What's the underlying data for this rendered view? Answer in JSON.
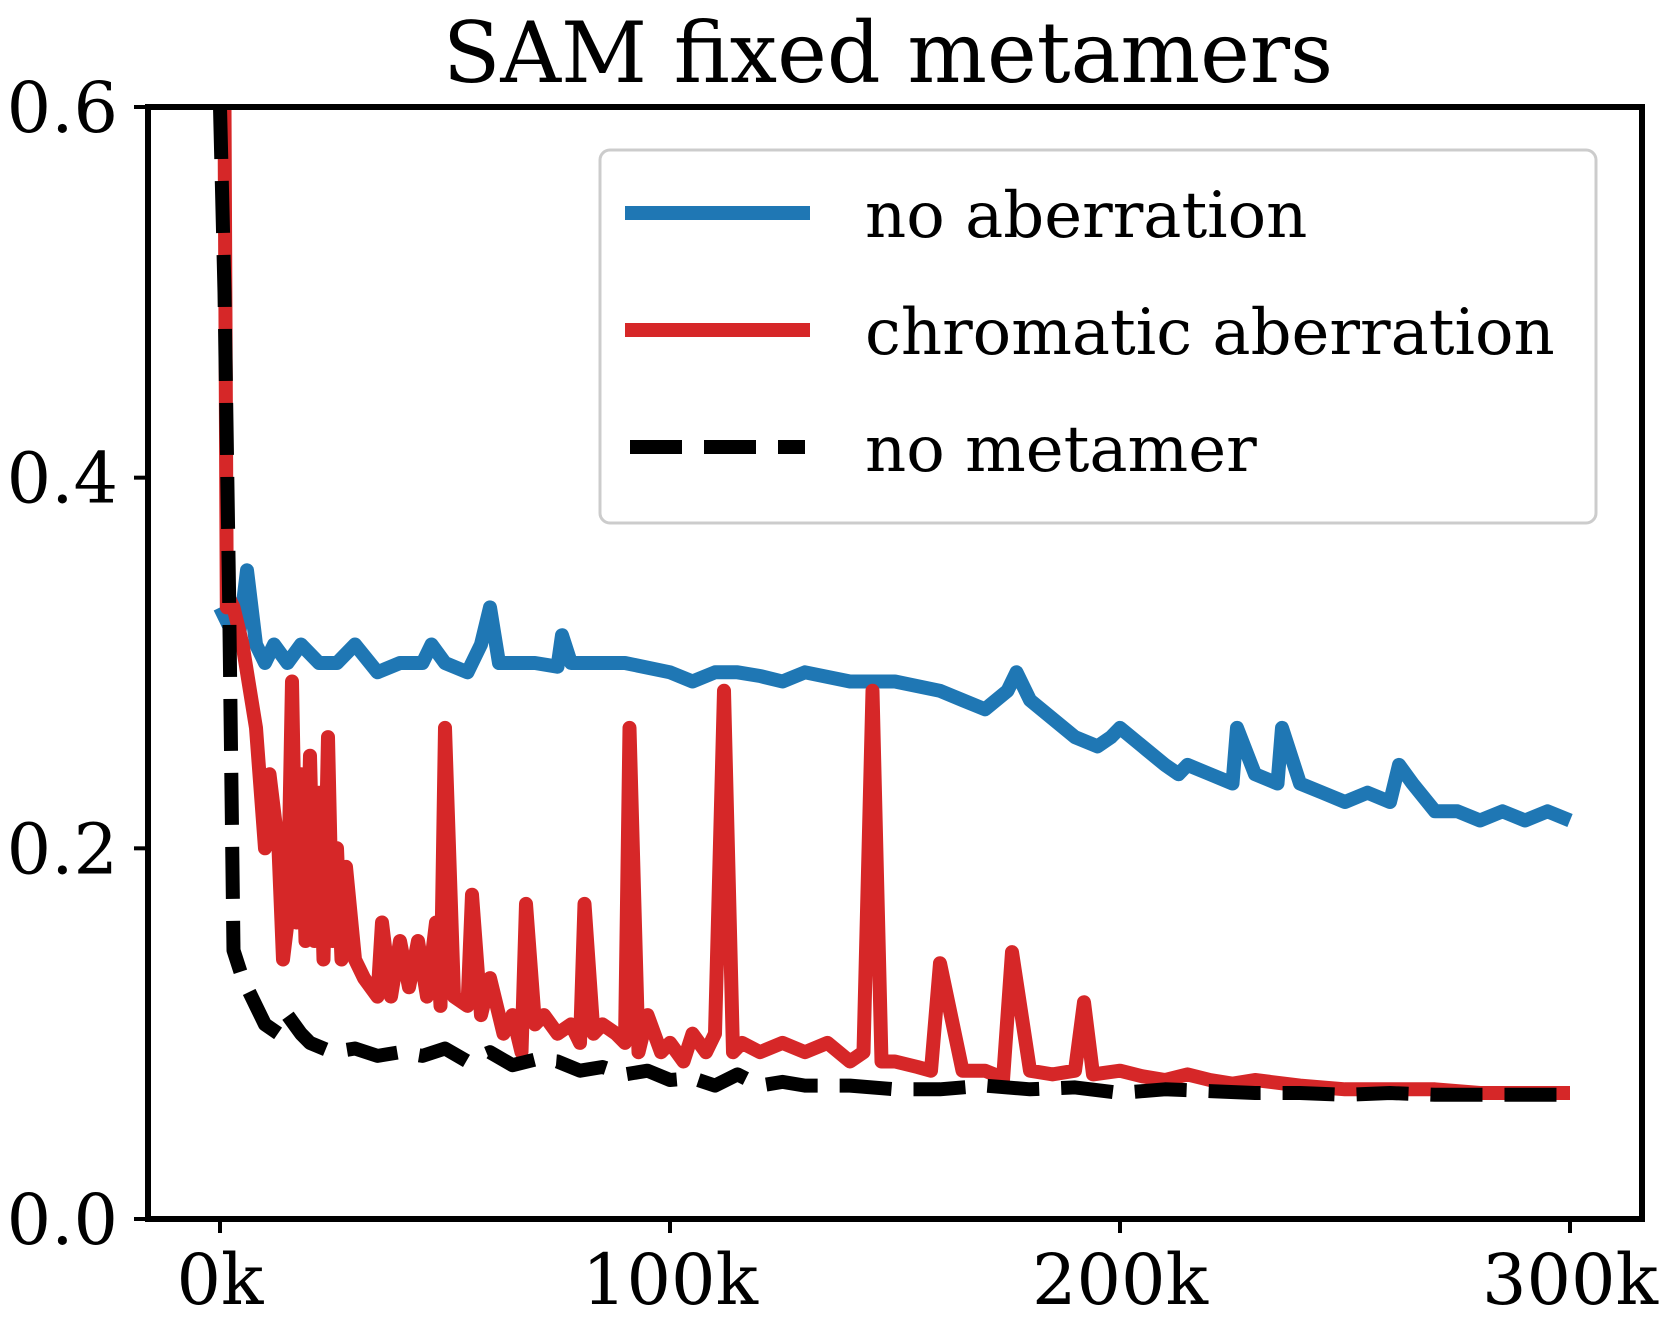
{
  "chart_data": {
    "type": "line",
    "title": "SAM fixed metamers",
    "xlabel": "",
    "ylabel": "",
    "xlim": [
      -16000,
      316000
    ],
    "ylim": [
      0.0,
      0.6
    ],
    "xticks": [
      0,
      100000,
      200000,
      300000
    ],
    "xtick_labels": [
      "0k",
      "100k",
      "200k",
      "300k"
    ],
    "yticks": [
      0.0,
      0.2,
      0.4,
      0.6
    ],
    "ytick_labels": [
      "0.0",
      "0.2",
      "0.4",
      "0.6"
    ],
    "grid": false,
    "legend_position": "top-right",
    "series": [
      {
        "name": "no aberration",
        "color": "#1f77b4",
        "style": "solid",
        "x": [
          0,
          2000,
          4000,
          6000,
          8000,
          10000,
          12000,
          15000,
          18000,
          22000,
          26000,
          30000,
          35000,
          40000,
          45000,
          47000,
          50000,
          55000,
          58000,
          60000,
          62000,
          65000,
          70000,
          75000,
          76000,
          78000,
          82000,
          90000,
          100000,
          105000,
          110000,
          115000,
          120000,
          125000,
          130000,
          140000,
          150000,
          160000,
          165000,
          170000,
          175000,
          177000,
          180000,
          185000,
          190000,
          195000,
          198000,
          200000,
          205000,
          210000,
          213000,
          215000,
          220000,
          225000,
          226000,
          230000,
          235000,
          236000,
          240000,
          245000,
          250000,
          255000,
          260000,
          262000,
          265000,
          270000,
          275000,
          280000,
          285000,
          290000,
          295000,
          300000
        ],
        "values": [
          0.33,
          0.32,
          0.31,
          0.35,
          0.31,
          0.3,
          0.31,
          0.3,
          0.31,
          0.3,
          0.3,
          0.31,
          0.295,
          0.3,
          0.3,
          0.31,
          0.3,
          0.295,
          0.31,
          0.33,
          0.3,
          0.3,
          0.3,
          0.298,
          0.315,
          0.3,
          0.3,
          0.3,
          0.295,
          0.29,
          0.295,
          0.295,
          0.293,
          0.29,
          0.295,
          0.29,
          0.29,
          0.285,
          0.28,
          0.275,
          0.285,
          0.295,
          0.28,
          0.27,
          0.26,
          0.255,
          0.26,
          0.265,
          0.255,
          0.245,
          0.24,
          0.245,
          0.24,
          0.235,
          0.265,
          0.24,
          0.235,
          0.265,
          0.235,
          0.23,
          0.225,
          0.23,
          0.225,
          0.245,
          0.235,
          0.22,
          0.22,
          0.215,
          0.22,
          0.215,
          0.22,
          0.215
        ]
      },
      {
        "name": "chromatic aberration",
        "color": "#d62728",
        "style": "solid",
        "x": [
          0,
          1000,
          1500,
          2000,
          3000,
          5000,
          7000,
          8000,
          10000,
          11000,
          13000,
          14000,
          15000,
          16000,
          17000,
          18000,
          19000,
          20000,
          21000,
          22000,
          23000,
          24000,
          25000,
          26000,
          27000,
          28000,
          30000,
          32000,
          35000,
          36000,
          38000,
          40000,
          42000,
          44000,
          46000,
          48000,
          49000,
          50000,
          52000,
          55000,
          56000,
          58000,
          60000,
          63000,
          65000,
          67000,
          68000,
          70000,
          72000,
          75000,
          78000,
          80000,
          81000,
          83000,
          85000,
          88000,
          90000,
          91000,
          93000,
          95000,
          98000,
          100000,
          103000,
          105000,
          108000,
          110000,
          112000,
          114000,
          116000,
          120000,
          125000,
          130000,
          135000,
          140000,
          143000,
          145000,
          147000,
          150000,
          155000,
          158000,
          160000,
          165000,
          170000,
          172000,
          174000,
          176000,
          180000,
          185000,
          190000,
          192000,
          194000,
          200000,
          205000,
          210000,
          215000,
          220000,
          225000,
          230000,
          240000,
          250000,
          260000,
          270000,
          280000,
          290000,
          300000
        ],
        "values": [
          0.6,
          0.6,
          0.33,
          0.335,
          0.33,
          0.31,
          0.28,
          0.265,
          0.2,
          0.24,
          0.2,
          0.14,
          0.16,
          0.29,
          0.16,
          0.24,
          0.15,
          0.25,
          0.15,
          0.23,
          0.14,
          0.26,
          0.15,
          0.2,
          0.14,
          0.19,
          0.14,
          0.13,
          0.12,
          0.16,
          0.12,
          0.15,
          0.125,
          0.15,
          0.12,
          0.16,
          0.115,
          0.265,
          0.12,
          0.115,
          0.175,
          0.11,
          0.13,
          0.1,
          0.11,
          0.09,
          0.17,
          0.105,
          0.11,
          0.1,
          0.105,
          0.095,
          0.17,
          0.1,
          0.105,
          0.1,
          0.095,
          0.265,
          0.09,
          0.11,
          0.09,
          0.095,
          0.085,
          0.1,
          0.09,
          0.1,
          0.285,
          0.09,
          0.095,
          0.09,
          0.095,
          0.09,
          0.095,
          0.085,
          0.09,
          0.285,
          0.085,
          0.085,
          0.082,
          0.08,
          0.138,
          0.08,
          0.08,
          0.078,
          0.075,
          0.144,
          0.08,
          0.078,
          0.08,
          0.117,
          0.078,
          0.08,
          0.077,
          0.075,
          0.078,
          0.075,
          0.073,
          0.075,
          0.072,
          0.07,
          0.07,
          0.07,
          0.068,
          0.068,
          0.068
        ]
      },
      {
        "name": "no metamer",
        "color": "#000000",
        "style": "dashed",
        "x": [
          0,
          1000,
          2000,
          3000,
          5000,
          8000,
          10000,
          13000,
          15000,
          18000,
          20000,
          25000,
          30000,
          35000,
          40000,
          45000,
          50000,
          55000,
          60000,
          65000,
          70000,
          75000,
          80000,
          85000,
          90000,
          95000,
          100000,
          105000,
          110000,
          115000,
          120000,
          125000,
          130000,
          140000,
          150000,
          160000,
          170000,
          180000,
          190000,
          200000,
          210000,
          220000,
          230000,
          240000,
          250000,
          260000,
          270000,
          280000,
          290000,
          300000
        ],
        "values": [
          0.6,
          0.5,
          0.34,
          0.145,
          0.13,
          0.115,
          0.105,
          0.1,
          0.11,
          0.1,
          0.095,
          0.09,
          0.092,
          0.088,
          0.09,
          0.088,
          0.092,
          0.085,
          0.09,
          0.083,
          0.086,
          0.085,
          0.08,
          0.082,
          0.078,
          0.08,
          0.075,
          0.076,
          0.072,
          0.078,
          0.072,
          0.074,
          0.072,
          0.072,
          0.07,
          0.07,
          0.072,
          0.07,
          0.071,
          0.068,
          0.07,
          0.069,
          0.068,
          0.068,
          0.067,
          0.068,
          0.067,
          0.067,
          0.067,
          0.067
        ]
      }
    ]
  }
}
